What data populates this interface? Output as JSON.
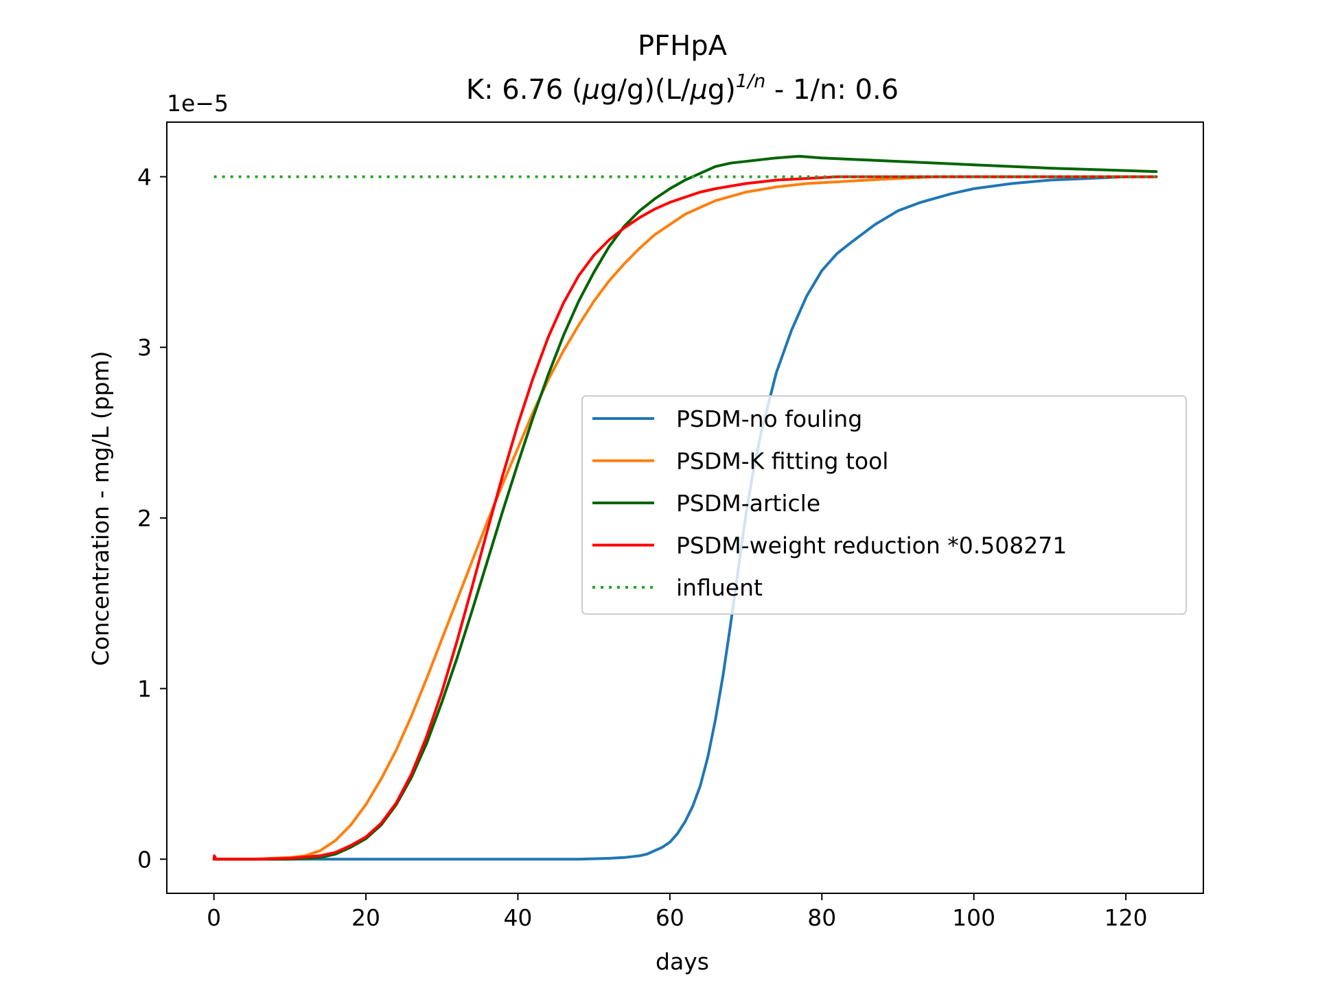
{
  "chart_data": {
    "type": "line",
    "title": "PFHpA",
    "subtitle_prefix": "K: 6.76 (",
    "subtitle_mu1": "μ",
    "subtitle_mid": "g/g)(L/",
    "subtitle_mu2": "μ",
    "subtitle_mid2": "g)",
    "subtitle_sup": "1/n",
    "subtitle_suffix": " - 1/n: 0.6",
    "xlabel": "days",
    "ylabel": "Concentration - mg/L (ppm)",
    "y_offset_label": "1e−5",
    "y_scale_note": "y values shown in units of 1e-5 mg/L",
    "xlim": [
      -6.2,
      130.2
    ],
    "ylim": [
      -0.2,
      4.32
    ],
    "xticks": [
      0,
      20,
      40,
      60,
      80,
      100,
      120
    ],
    "yticks": [
      0,
      1,
      2,
      3,
      4
    ],
    "grid": false,
    "legend_placement": "center-right",
    "series": [
      {
        "name": "PSDM-no fouling",
        "color": "#1f77b4",
        "style": "solid",
        "x": [
          0,
          10,
          20,
          30,
          40,
          48,
          52,
          54,
          56,
          57,
          58,
          59,
          60,
          61,
          62,
          63,
          64,
          65,
          66,
          67,
          68,
          69,
          70,
          71,
          72,
          74,
          76,
          78,
          80,
          82,
          84,
          87,
          90,
          93,
          97,
          100,
          105,
          110,
          115,
          120,
          124
        ],
        "y": [
          0,
          0,
          0,
          0,
          0,
          0,
          0.005,
          0.01,
          0.02,
          0.03,
          0.05,
          0.07,
          0.1,
          0.15,
          0.22,
          0.31,
          0.43,
          0.6,
          0.82,
          1.08,
          1.38,
          1.7,
          2.02,
          2.28,
          2.5,
          2.85,
          3.1,
          3.3,
          3.45,
          3.55,
          3.62,
          3.72,
          3.8,
          3.85,
          3.9,
          3.93,
          3.96,
          3.98,
          3.99,
          4.0,
          4.0
        ]
      },
      {
        "name": "PSDM-K fitting tool",
        "color": "#ff7f0e",
        "style": "solid",
        "x": [
          0,
          5,
          10,
          12,
          14,
          16,
          18,
          20,
          22,
          24,
          26,
          28,
          30,
          32,
          34,
          36,
          38,
          40,
          42,
          44,
          46,
          48,
          50,
          52,
          54,
          56,
          58,
          60,
          62,
          64,
          66,
          70,
          74,
          78,
          82,
          86,
          90,
          95,
          100,
          110,
          124
        ],
        "y": [
          0,
          0,
          0.01,
          0.02,
          0.05,
          0.11,
          0.2,
          0.32,
          0.47,
          0.64,
          0.84,
          1.06,
          1.29,
          1.52,
          1.75,
          1.98,
          2.2,
          2.41,
          2.62,
          2.81,
          2.98,
          3.13,
          3.27,
          3.39,
          3.49,
          3.58,
          3.66,
          3.72,
          3.78,
          3.82,
          3.86,
          3.91,
          3.94,
          3.96,
          3.97,
          3.98,
          3.99,
          4.0,
          4.0,
          4.0,
          4.0
        ]
      },
      {
        "name": "PSDM-article",
        "color": "#006400",
        "style": "solid",
        "x": [
          0,
          5,
          10,
          14,
          16,
          18,
          20,
          22,
          24,
          26,
          28,
          30,
          32,
          34,
          36,
          38,
          40,
          42,
          44,
          46,
          48,
          50,
          52,
          54,
          56,
          58,
          60,
          62,
          64,
          66,
          68,
          70,
          72,
          74,
          77,
          80,
          85,
          90,
          100,
          110,
          124
        ],
        "y": [
          0,
          0,
          0,
          0.01,
          0.03,
          0.07,
          0.12,
          0.2,
          0.32,
          0.48,
          0.68,
          0.92,
          1.18,
          1.46,
          1.75,
          2.04,
          2.32,
          2.59,
          2.84,
          3.07,
          3.27,
          3.44,
          3.59,
          3.71,
          3.8,
          3.87,
          3.93,
          3.98,
          4.02,
          4.06,
          4.08,
          4.09,
          4.1,
          4.11,
          4.12,
          4.11,
          4.1,
          4.09,
          4.07,
          4.05,
          4.03
        ]
      },
      {
        "name": "PSDM-weight reduction *0.508271",
        "color": "#ff0000",
        "style": "solid",
        "x": [
          0,
          0.05,
          0.1,
          0.3,
          5,
          10,
          14,
          16,
          18,
          20,
          22,
          24,
          26,
          28,
          30,
          32,
          34,
          36,
          38,
          40,
          42,
          44,
          46,
          48,
          50,
          52,
          54,
          56,
          58,
          60,
          62,
          64,
          66,
          70,
          74,
          78,
          82,
          86,
          90,
          100,
          124
        ],
        "y": [
          0,
          0.02,
          0.015,
          0,
          0,
          0.005,
          0.02,
          0.04,
          0.08,
          0.13,
          0.21,
          0.33,
          0.5,
          0.72,
          0.98,
          1.28,
          1.6,
          1.93,
          2.25,
          2.55,
          2.82,
          3.06,
          3.26,
          3.42,
          3.54,
          3.63,
          3.7,
          3.76,
          3.81,
          3.85,
          3.88,
          3.91,
          3.93,
          3.96,
          3.98,
          3.99,
          4.0,
          4.0,
          4.0,
          4.0,
          4.0
        ]
      },
      {
        "name": "influent",
        "color": "#2ca02c",
        "style": "dotted",
        "x": [
          0,
          124
        ],
        "y": [
          4.0,
          4.0
        ]
      }
    ]
  }
}
